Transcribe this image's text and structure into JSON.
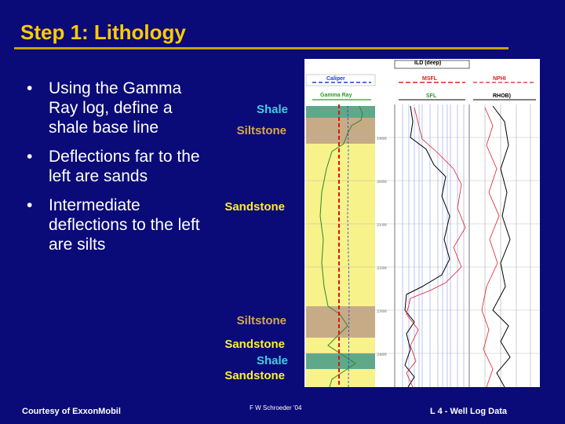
{
  "slide": {
    "title": "Step 1: Lithology",
    "bullets": [
      "Using the Gamma Ray log, define a shale base line",
      "Deflections far to the left are sands",
      "Intermediate deflections to the left are silts"
    ],
    "labels": {
      "shale_top": "Shale",
      "siltstone_top": "Siltstone",
      "sandstone_main": "Sandstone",
      "siltstone_lower": "Siltstone",
      "sandstone_lower": "Sandstone",
      "shale_lower": "Shale",
      "sandstone_bottom": "Sandstone"
    },
    "log_headers": {
      "ild": "ILD (deep)",
      "caliper": "Caliper",
      "msfl": "MSFL",
      "nphi": "NPHI",
      "gamma_ray": "Gamma Ray",
      "sfl": "SFL",
      "rhob": "RHOB)"
    },
    "footer": {
      "left": "Courtesy of ExxonMobil",
      "center": "F W Schroeder '04",
      "right": "L 4 -  Well Log Data"
    },
    "colors": {
      "background": "#0a0a78",
      "title": "#ffcc00",
      "shale": "#3ecfe0",
      "siltstone": "#d4a84a",
      "sandstone": "#ffee30"
    }
  }
}
